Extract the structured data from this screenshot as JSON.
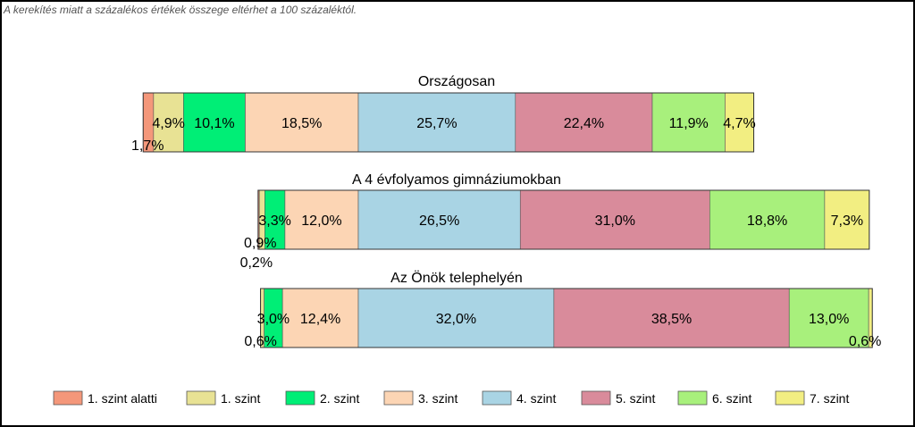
{
  "note": "A kerekítés miatt a  százalékos értékek összege eltérhet a 100 százaléktól.",
  "colors": {
    "1. szint alatti": "#f4977a",
    "1. szint": "#e8e294",
    "2. szint": "#00ee76",
    "3. szint": "#fcd5b4",
    "4. szint": "#a9d4e4",
    "5. szint": "#d98b9b",
    "6. szint": "#a8f07c",
    "7. szint": "#f2ee82"
  },
  "chart_data": {
    "type": "bar",
    "orientation": "horizontal",
    "stacked": true,
    "layout": "diverging",
    "legend": "bottom",
    "grid": false,
    "legend_entries": [
      "1. szint alatti",
      "1. szint",
      "2. szint",
      "3. szint",
      "4. szint",
      "5. szint",
      "6. szint",
      "7. szint"
    ],
    "categories": [
      "Országosan",
      "A 4 évfolyamos gimnáziumokban",
      "Az Önök telephelyén"
    ],
    "series": [
      {
        "name": "1. szint alatti",
        "values": [
          1.7,
          0.2,
          0.0
        ]
      },
      {
        "name": "1. szint",
        "values": [
          4.9,
          0.9,
          0.6
        ]
      },
      {
        "name": "2. szint",
        "values": [
          10.1,
          3.3,
          3.0
        ]
      },
      {
        "name": "3. szint",
        "values": [
          18.5,
          12.0,
          12.4
        ]
      },
      {
        "name": "4. szint",
        "values": [
          25.7,
          26.5,
          32.0
        ]
      },
      {
        "name": "5. szint",
        "values": [
          22.4,
          31.0,
          38.5
        ]
      },
      {
        "name": "6. szint",
        "values": [
          11.9,
          18.8,
          13.0
        ]
      },
      {
        "name": "7. szint",
        "values": [
          4.7,
          7.3,
          0.6
        ]
      }
    ],
    "labels": [
      [
        "1,7%",
        "4,9%",
        "10,1%",
        "18,5%",
        "25,7%",
        "22,4%",
        "11,9%",
        "4,7%"
      ],
      [
        "0,2%",
        "0,9%",
        "3,3%",
        "12,0%",
        "26,5%",
        "31,0%",
        "18,8%",
        "7,3%"
      ],
      [
        "",
        "0,6%",
        "3,0%",
        "12,4%",
        "32,0%",
        "38,5%",
        "13,0%",
        "0,6%"
      ]
    ]
  }
}
